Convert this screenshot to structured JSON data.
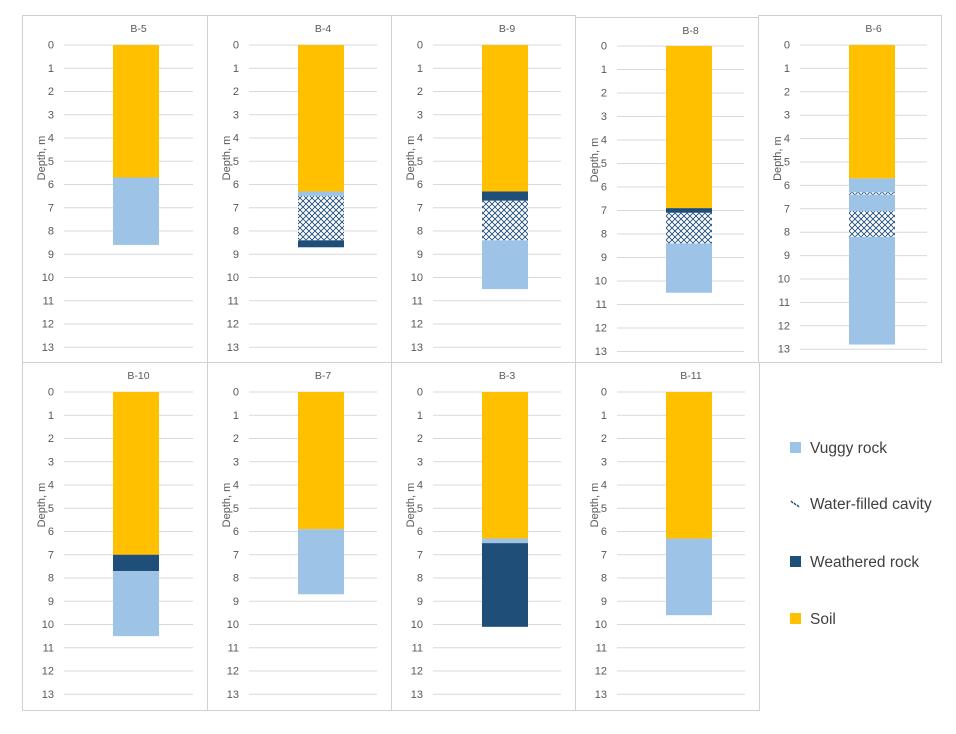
{
  "legend": [
    {
      "key": "vuggy",
      "label": "Vuggy rock",
      "color": "#9dc3e6"
    },
    {
      "key": "water",
      "label": "Water-filled cavity",
      "color": "#1f4e79"
    },
    {
      "key": "weathered",
      "label": "Weathered rock",
      "color": "#1f4e79"
    },
    {
      "key": "soil",
      "label": "Soil",
      "color": "#ffc000"
    }
  ],
  "chart_data": [
    {
      "type": "bar",
      "title": "B-5",
      "ylabel": "Depth, m",
      "ylim": [
        0,
        13
      ],
      "y_ticks": [
        0,
        1,
        2,
        3,
        4,
        5,
        6,
        7,
        8,
        9,
        10,
        11,
        12,
        13
      ],
      "series": [
        {
          "name": "Soil",
          "from": 0,
          "to": 5.7
        },
        {
          "name": "Vuggy rock",
          "from": 5.7,
          "to": 8.6
        }
      ]
    },
    {
      "type": "bar",
      "title": "B-4",
      "ylabel": "Depth, m",
      "ylim": [
        0,
        13
      ],
      "y_ticks": [
        0,
        1,
        2,
        3,
        4,
        5,
        6,
        7,
        8,
        9,
        10,
        11,
        12,
        13
      ],
      "series": [
        {
          "name": "Soil",
          "from": 0,
          "to": 6.3
        },
        {
          "name": "Vuggy rock",
          "from": 6.3,
          "to": 6.5
        },
        {
          "name": "Water-filled cavity",
          "from": 6.5,
          "to": 8.4
        },
        {
          "name": "Weathered rock",
          "from": 8.4,
          "to": 8.7
        }
      ]
    },
    {
      "type": "bar",
      "title": "B-9",
      "ylabel": "Depth, m",
      "ylim": [
        0,
        13
      ],
      "y_ticks": [
        0,
        1,
        2,
        3,
        4,
        5,
        6,
        7,
        8,
        9,
        10,
        11,
        12,
        13
      ],
      "series": [
        {
          "name": "Soil",
          "from": 0,
          "to": 6.3
        },
        {
          "name": "Weathered rock",
          "from": 6.3,
          "to": 6.7
        },
        {
          "name": "Water-filled cavity",
          "from": 6.7,
          "to": 8.4
        },
        {
          "name": "Vuggy rock",
          "from": 8.4,
          "to": 10.5
        }
      ]
    },
    {
      "type": "bar",
      "title": "B-8",
      "ylabel": "Depth, m",
      "ylim": [
        0,
        13
      ],
      "y_ticks": [
        0,
        1,
        2,
        3,
        4,
        5,
        6,
        7,
        8,
        9,
        10,
        11,
        12,
        13
      ],
      "series": [
        {
          "name": "Soil",
          "from": 0,
          "to": 6.9
        },
        {
          "name": "Weathered rock",
          "from": 6.9,
          "to": 7.1
        },
        {
          "name": "Water-filled cavity",
          "from": 7.1,
          "to": 8.4
        },
        {
          "name": "Vuggy rock",
          "from": 8.4,
          "to": 10.5
        }
      ]
    },
    {
      "type": "bar",
      "title": "B-6",
      "ylabel": "Depth, m",
      "ylim": [
        0,
        13
      ],
      "y_ticks": [
        0,
        1,
        2,
        3,
        4,
        5,
        6,
        7,
        8,
        9,
        10,
        11,
        12,
        13
      ],
      "series": [
        {
          "name": "Soil",
          "from": 0,
          "to": 5.7
        },
        {
          "name": "Vuggy rock",
          "from": 5.7,
          "to": 6.3
        },
        {
          "name": "Water-filled cavity",
          "from": 6.3,
          "to": 6.4
        },
        {
          "name": "Vuggy rock",
          "from": 6.4,
          "to": 7.1
        },
        {
          "name": "Water-filled cavity",
          "from": 7.1,
          "to": 8.2
        },
        {
          "name": "Vuggy rock",
          "from": 8.2,
          "to": 12.8
        }
      ]
    },
    {
      "type": "bar",
      "title": "B-10",
      "ylabel": "Depth, m",
      "ylim": [
        0,
        13
      ],
      "y_ticks": [
        0,
        1,
        2,
        3,
        4,
        5,
        6,
        7,
        8,
        9,
        10,
        11,
        12,
        13
      ],
      "series": [
        {
          "name": "Soil",
          "from": 0,
          "to": 7.0
        },
        {
          "name": "Weathered rock",
          "from": 7.0,
          "to": 7.7
        },
        {
          "name": "Vuggy rock",
          "from": 7.7,
          "to": 10.5
        }
      ]
    },
    {
      "type": "bar",
      "title": "B-7",
      "ylabel": "Depth, m",
      "ylim": [
        0,
        13
      ],
      "y_ticks": [
        0,
        1,
        2,
        3,
        4,
        5,
        6,
        7,
        8,
        9,
        10,
        11,
        12,
        13
      ],
      "series": [
        {
          "name": "Soil",
          "from": 0,
          "to": 5.9
        },
        {
          "name": "Vuggy rock",
          "from": 5.9,
          "to": 8.7
        }
      ]
    },
    {
      "type": "bar",
      "title": "B-3",
      "ylabel": "Depth, m",
      "ylim": [
        0,
        13
      ],
      "y_ticks": [
        0,
        1,
        2,
        3,
        4,
        5,
        6,
        7,
        8,
        9,
        10,
        11,
        12,
        13
      ],
      "series": [
        {
          "name": "Soil",
          "from": 0,
          "to": 6.3
        },
        {
          "name": "Vuggy rock",
          "from": 6.3,
          "to": 6.5
        },
        {
          "name": "Weathered rock",
          "from": 6.5,
          "to": 10.1
        }
      ]
    },
    {
      "type": "bar",
      "title": "B-11",
      "ylabel": "Depth, m",
      "ylim": [
        0,
        13
      ],
      "y_ticks": [
        0,
        1,
        2,
        3,
        4,
        5,
        6,
        7,
        8,
        9,
        10,
        11,
        12,
        13
      ],
      "series": [
        {
          "name": "Soil",
          "from": 0,
          "to": 6.3
        },
        {
          "name": "Vuggy rock",
          "from": 6.3,
          "to": 9.6
        }
      ]
    }
  ]
}
